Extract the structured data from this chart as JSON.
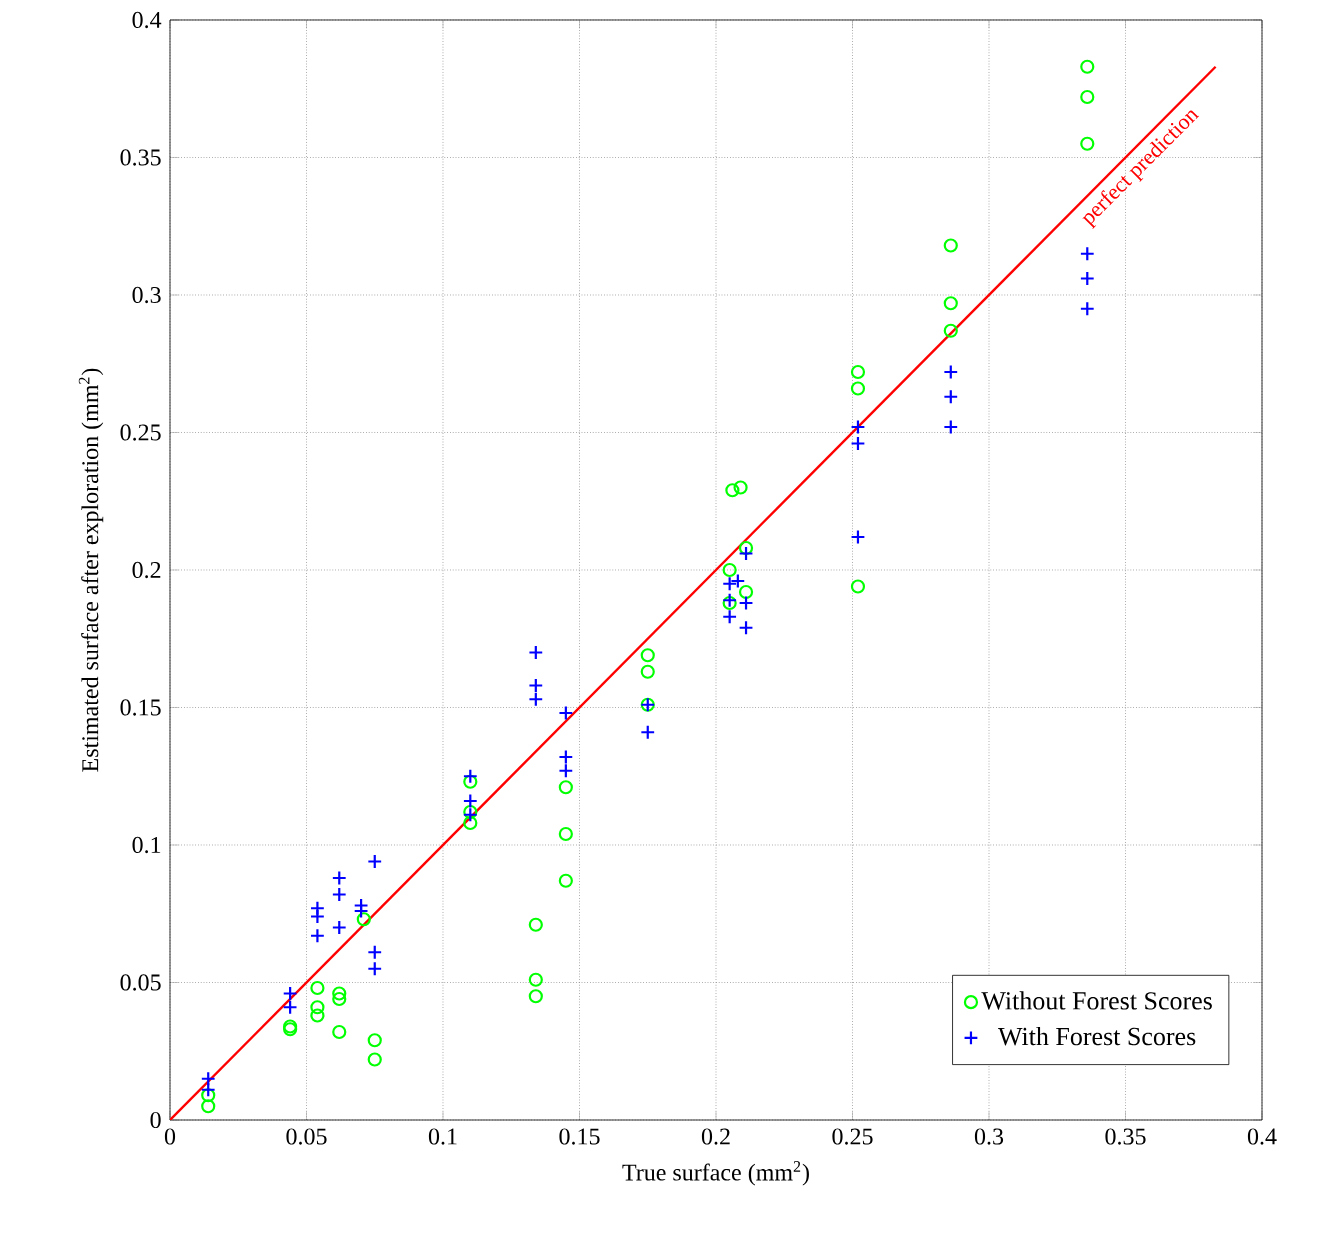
{
  "chart_data": {
    "type": "scatter",
    "xlabel": "True surface (mm$^{2}$)",
    "ylabel": "Estimated surface after exploration (mm$^{2}$)",
    "xlim": [
      0,
      0.4
    ],
    "ylim": [
      0,
      0.4
    ],
    "xticks": [
      0,
      0.05,
      0.1,
      0.15,
      0.2,
      0.25,
      0.3,
      0.35,
      0.4
    ],
    "yticks": [
      0,
      0.05,
      0.1,
      0.15,
      0.2,
      0.25,
      0.3,
      0.35,
      0.4
    ],
    "grid": true,
    "legend": "bottom right",
    "series": [
      {
        "name": "Without Forest Scores",
        "marker": "circle",
        "color": "#00ff00",
        "x": [
          0.014,
          0.014,
          0.044,
          0.044,
          0.054,
          0.054,
          0.054,
          0.062,
          0.062,
          0.062,
          0.071,
          0.075,
          0.075,
          0.11,
          0.11,
          0.11,
          0.134,
          0.134,
          0.134,
          0.145,
          0.145,
          0.145,
          0.175,
          0.175,
          0.175,
          0.206,
          0.209,
          0.211,
          0.211,
          0.205,
          0.205,
          0.252,
          0.252,
          0.252,
          0.286,
          0.286,
          0.286,
          0.336,
          0.336,
          0.336
        ],
        "values": [
          0.005,
          0.009,
          0.034,
          0.033,
          0.048,
          0.041,
          0.038,
          0.046,
          0.044,
          0.032,
          0.073,
          0.029,
          0.022,
          0.123,
          0.112,
          0.108,
          0.071,
          0.051,
          0.045,
          0.121,
          0.104,
          0.087,
          0.169,
          0.163,
          0.151,
          0.229,
          0.23,
          0.208,
          0.192,
          0.2,
          0.188,
          0.272,
          0.266,
          0.194,
          0.318,
          0.297,
          0.287,
          0.383,
          0.372,
          0.355
        ]
      },
      {
        "name": "With Forest Scores",
        "marker": "cross",
        "color": "#0000ff",
        "x": [
          0.014,
          0.014,
          0.044,
          0.044,
          0.054,
          0.054,
          0.054,
          0.062,
          0.062,
          0.062,
          0.07,
          0.07,
          0.075,
          0.075,
          0.075,
          0.11,
          0.11,
          0.11,
          0.134,
          0.134,
          0.134,
          0.145,
          0.145,
          0.145,
          0.175,
          0.175,
          0.205,
          0.205,
          0.205,
          0.208,
          0.211,
          0.211,
          0.211,
          0.252,
          0.252,
          0.252,
          0.286,
          0.286,
          0.286,
          0.336,
          0.336,
          0.336
        ],
        "values": [
          0.015,
          0.011,
          0.046,
          0.041,
          0.077,
          0.074,
          0.067,
          0.088,
          0.082,
          0.07,
          0.078,
          0.076,
          0.094,
          0.061,
          0.055,
          0.125,
          0.116,
          0.111,
          0.17,
          0.158,
          0.153,
          0.148,
          0.132,
          0.127,
          0.151,
          0.141,
          0.195,
          0.189,
          0.183,
          0.196,
          0.206,
          0.188,
          0.179,
          0.252,
          0.246,
          0.212,
          0.272,
          0.263,
          0.252,
          0.315,
          0.306,
          0.295
        ]
      },
      {
        "type": "line",
        "marker": "none",
        "line_style": "solid",
        "color": "#ff0000",
        "x": [
          0,
          0.383
        ],
        "values": [
          0,
          0.383
        ]
      }
    ],
    "annotations": [
      {
        "text": "perfect prediction",
        "x": 0.352,
        "y": 0.35
      }
    ]
  }
}
